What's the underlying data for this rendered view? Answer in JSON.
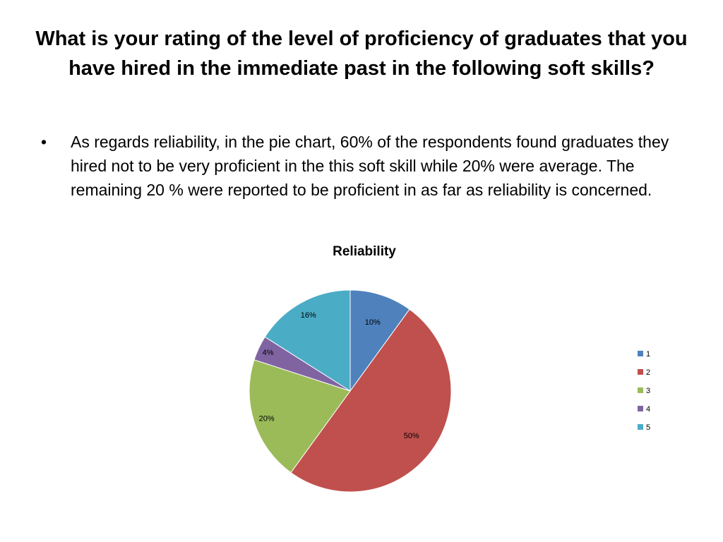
{
  "slide": {
    "title": "What is your rating of the level of proficiency of graduates that you have hired in the immediate past in the following soft skills?",
    "bullet_symbol": "•",
    "bullet_text": "As regards reliability, in the pie chart, 60% of the respondents found graduates they hired not to be very proficient in the this soft skill while 20% were average. The remaining 20 % were reported to be proficient in as far as reliability is concerned."
  },
  "chart_data": {
    "type": "pie",
    "title": "Reliability",
    "legend_position": "right",
    "categories": [
      "1",
      "2",
      "3",
      "4",
      "5"
    ],
    "values": [
      10,
      50,
      20,
      4,
      16
    ],
    "labels": [
      "10%",
      "50%",
      "20%",
      "4%",
      "16%"
    ],
    "colors": [
      "#4F81BD",
      "#C0504D",
      "#9BBB59",
      "#8064A2",
      "#4BACC6"
    ]
  }
}
